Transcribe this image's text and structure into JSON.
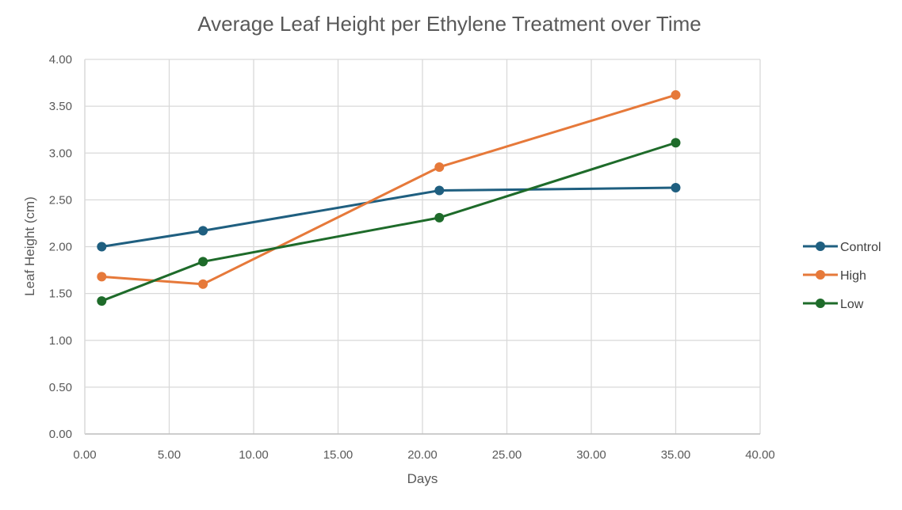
{
  "chart_data": {
    "type": "scatter",
    "title": "Average Leaf Height per Ethylene Treatment over Time",
    "xlabel": "Days",
    "ylabel": "Leaf Height (cm)",
    "xlim": [
      0,
      40
    ],
    "ylim": [
      0,
      4
    ],
    "x_ticks": [
      "0.00",
      "5.00",
      "10.00",
      "15.00",
      "20.00",
      "25.00",
      "30.00",
      "35.00",
      "40.00"
    ],
    "y_ticks": [
      "0.00",
      "0.50",
      "1.00",
      "1.50",
      "2.00",
      "2.50",
      "3.00",
      "3.50",
      "4.00"
    ],
    "grid": true,
    "legend_position": "right",
    "series": [
      {
        "name": "Control",
        "color": "#1f5f80",
        "x": [
          1,
          7,
          21,
          35
        ],
        "y": [
          2.0,
          2.17,
          2.6,
          2.63
        ]
      },
      {
        "name": "High",
        "color": "#e6793a",
        "x": [
          1,
          7,
          21,
          35
        ],
        "y": [
          1.68,
          1.6,
          2.85,
          3.62
        ]
      },
      {
        "name": "Low",
        "color": "#1e6b2a",
        "x": [
          1,
          7,
          21,
          35
        ],
        "y": [
          1.42,
          1.84,
          2.31,
          3.11
        ]
      }
    ]
  }
}
